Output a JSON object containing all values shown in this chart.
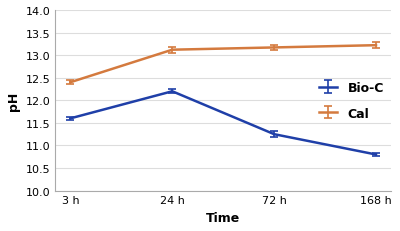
{
  "x_labels": [
    "3 h",
    "24 h",
    "72 h",
    "168 h"
  ],
  "x_positions": [
    0,
    1,
    2,
    3
  ],
  "bio_c_values": [
    11.6,
    12.2,
    11.25,
    10.8
  ],
  "bio_c_errors": [
    0.04,
    0.04,
    0.06,
    0.04
  ],
  "cal_values": [
    12.4,
    13.12,
    13.17,
    13.22
  ],
  "cal_errors": [
    0.05,
    0.07,
    0.06,
    0.06
  ],
  "bio_c_color": "#1f3fa8",
  "cal_color": "#d47a3e",
  "xlabel": "Time",
  "ylabel": "pH",
  "ylim": [
    10.0,
    14.0
  ],
  "yticks": [
    10.0,
    10.5,
    11.0,
    11.5,
    12.0,
    12.5,
    13.0,
    13.5,
    14.0
  ],
  "legend_labels": [
    "Bio-C",
    "Cal"
  ],
  "background_color": "#ffffff",
  "grid_color": "#dddddd",
  "title_fontsize": 10,
  "label_fontsize": 9,
  "tick_fontsize": 8,
  "legend_fontsize": 9
}
